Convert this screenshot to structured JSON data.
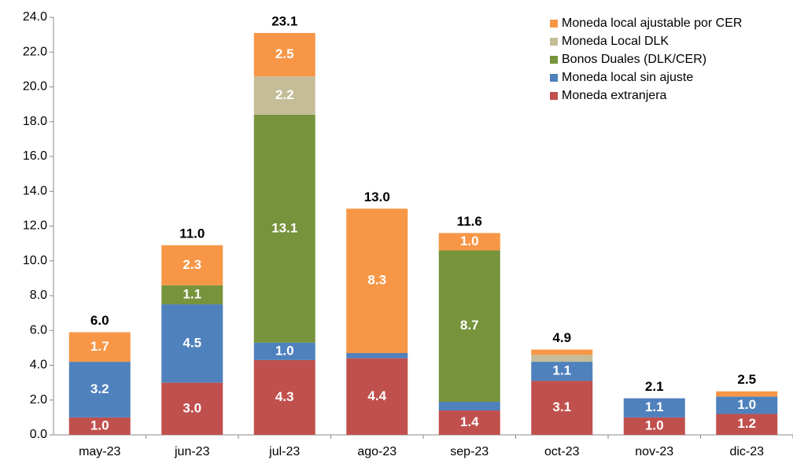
{
  "chart_data": {
    "type": "stacked-bar",
    "categories": [
      "may-23",
      "jun-23",
      "jul-23",
      "ago-23",
      "sep-23",
      "oct-23",
      "nov-23",
      "dic-23"
    ],
    "series": [
      {
        "name": "Moneda extranjera",
        "color": "#c0504d",
        "values": [
          1.0,
          3.0,
          4.3,
          4.4,
          1.4,
          3.1,
          1.0,
          1.2
        ],
        "value_labels": [
          "1.0",
          "3.0",
          "4.3",
          "4.4",
          "1.4",
          "3.1",
          "1.0",
          "1.2"
        ]
      },
      {
        "name": "Moneda local sin ajuste",
        "color": "#4f81bd",
        "values": [
          3.2,
          4.5,
          1.0,
          0.3,
          0.5,
          1.1,
          1.1,
          1.0
        ],
        "value_labels": [
          "3.2",
          "4.5",
          "1.0",
          null,
          null,
          "1.1",
          "1.1",
          "1.0"
        ]
      },
      {
        "name": "Bonos Duales (DLK/CER)",
        "color": "#77933c",
        "values": [
          null,
          1.1,
          13.1,
          null,
          8.7,
          null,
          null,
          null
        ],
        "value_labels": [
          null,
          "1.1",
          "13.1",
          null,
          "8.7",
          null,
          null,
          null
        ]
      },
      {
        "name": "Moneda Local DLK",
        "color": "#c4bd97",
        "values": [
          null,
          null,
          2.2,
          null,
          null,
          0.4,
          null,
          null
        ],
        "value_labels": [
          null,
          null,
          "2.2",
          null,
          null,
          null,
          null,
          null
        ]
      },
      {
        "name": "Moneda local ajustable por CER",
        "color": "#f79646",
        "values": [
          1.7,
          2.3,
          2.5,
          8.3,
          1.0,
          0.3,
          null,
          0.3
        ],
        "value_labels": [
          "1.7",
          "2.3",
          "2.5",
          "8.3",
          "1.0",
          null,
          null,
          null
        ]
      }
    ],
    "total_labels": [
      "6.0",
      "11.0",
      "23.1",
      "13.0",
      "11.6",
      "4.9",
      "2.1",
      "2.5"
    ],
    "ylim": [
      0,
      24
    ],
    "yticks": [
      {
        "value": 0,
        "label": "0.0"
      },
      {
        "value": 2,
        "label": "2.0"
      },
      {
        "value": 4,
        "label": "4.0"
      },
      {
        "value": 6,
        "label": "6.0"
      },
      {
        "value": 8,
        "label": "8.0"
      },
      {
        "value": 10,
        "label": "10.0"
      },
      {
        "value": 12,
        "label": "12.0"
      },
      {
        "value": 14,
        "label": "14.0"
      },
      {
        "value": 16,
        "label": "16.0"
      },
      {
        "value": 18,
        "label": "18.0"
      },
      {
        "value": 20,
        "label": "20.0"
      },
      {
        "value": 22,
        "label": "22.0"
      },
      {
        "value": 24,
        "label": "24.0"
      }
    ],
    "legend": "top-right"
  }
}
